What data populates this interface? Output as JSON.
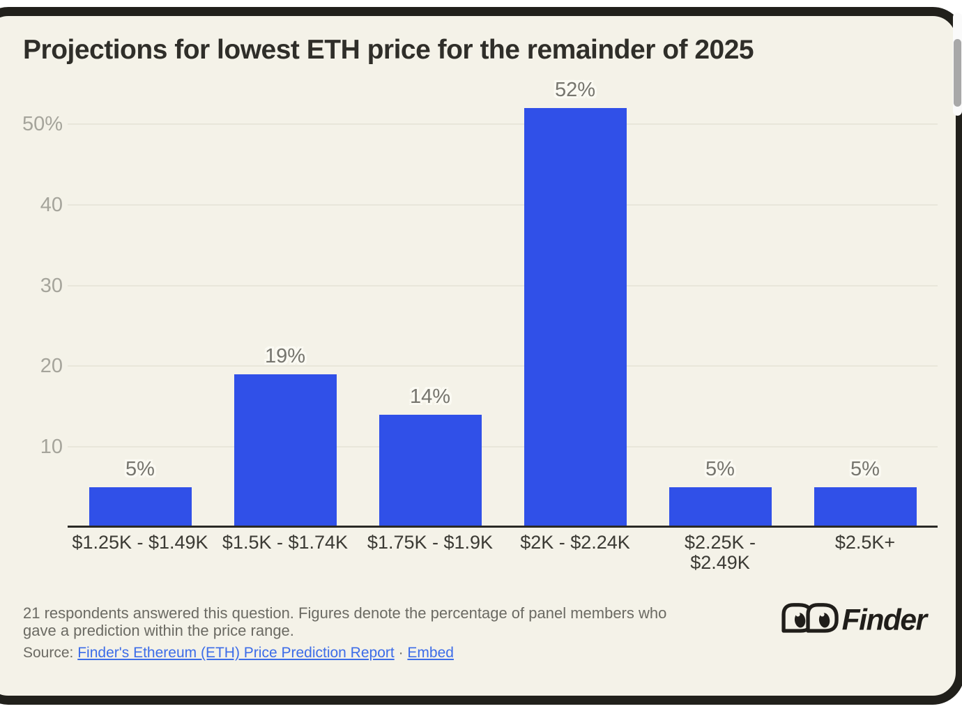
{
  "chart_data": {
    "type": "bar",
    "title": "Projections for lowest ETH price for the remainder of 2025",
    "categories": [
      "$1.25K - $1.49K",
      "$1.5K - $1.74K",
      "$1.75K - $1.9K",
      "$2K - $2.24K",
      "$2.25K - $2.49K",
      "$2.5K+"
    ],
    "category_lines": [
      [
        "$1.25K - $1.49K"
      ],
      [
        "$1.5K - $1.74K"
      ],
      [
        "$1.75K - $1.9K"
      ],
      [
        "$2K - $2.24K"
      ],
      [
        "$2.25K -",
        "$2.49K"
      ],
      [
        "$2.5K+"
      ]
    ],
    "values": [
      5,
      19,
      14,
      52,
      5,
      5
    ],
    "value_labels": [
      "5%",
      "19%",
      "14%",
      "52%",
      "5%",
      "5%"
    ],
    "value_label_suffix": "%",
    "yticks": [
      {
        "value": 50,
        "label": "50%"
      },
      {
        "value": 40,
        "label": "40"
      },
      {
        "value": 30,
        "label": "30"
      },
      {
        "value": 20,
        "label": "20"
      },
      {
        "value": 10,
        "label": "10"
      }
    ],
    "ylim": [
      0,
      55
    ],
    "grid": "horizontal",
    "legend_position": "none",
    "xlabel": "",
    "ylabel": "",
    "bar_color": "#3050e8"
  },
  "footer": {
    "note_lines": [
      "21 respondents answered this question. Figures denote the percentage of panel members who",
      "gave a prediction within the price range."
    ],
    "source_prefix": "Source:",
    "source_link_label": "Finder's Ethereum (ETH) Price Prediction Report",
    "separator": "·",
    "embed_link_label": "Embed",
    "logo_text": "Finder"
  },
  "colors": {
    "card_background": "#f4f2e8",
    "card_border": "#21201b",
    "bar": "#3050e8",
    "gridline": "#e8e6da",
    "axis": "#2a2925",
    "ytick_text": "#a5a49b",
    "value_label_text": "#76756e",
    "xtick_text": "#3b3a34",
    "footer_text": "#6b6a63",
    "link": "#3c6ce8",
    "title_text": "#2f2e29"
  }
}
